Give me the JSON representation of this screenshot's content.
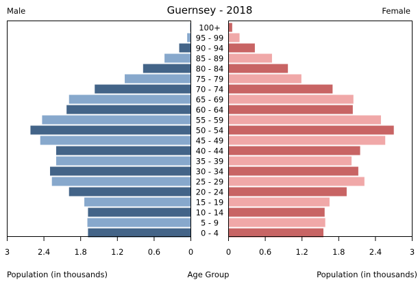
{
  "chart_data": {
    "type": "bar",
    "title": "Guernsey - 2018",
    "left_label": "Male",
    "right_label": "Female",
    "xlabel_left": "Population (in thousands)",
    "xlabel_center": "Age Group",
    "xlabel_right": "Population (in thousands)",
    "xlim": [
      0,
      3
    ],
    "ticks": [
      "0",
      "0.6",
      "1.2",
      "1.8",
      "2.4",
      "3"
    ],
    "tick_values": [
      0,
      0.6,
      1.2,
      1.8,
      2.4,
      3
    ],
    "categories": [
      "0 - 4",
      "5 - 9",
      "10 - 14",
      "15 - 19",
      "20 - 24",
      "25 - 29",
      "30 - 34",
      "35 - 39",
      "40 - 44",
      "45 - 49",
      "50 - 54",
      "55 - 59",
      "60 - 64",
      "65 - 69",
      "70 - 74",
      "75 - 79",
      "80 - 84",
      "85 - 89",
      "90 - 94",
      "95 - 99",
      "100+"
    ],
    "series": [
      {
        "name": "Male",
        "values": [
          1.68,
          1.69,
          1.68,
          1.74,
          1.99,
          2.27,
          2.3,
          2.2,
          2.2,
          2.46,
          2.62,
          2.43,
          2.03,
          1.99,
          1.57,
          1.08,
          0.78,
          0.43,
          0.19,
          0.06,
          0.01
        ]
      },
      {
        "name": "Female",
        "values": [
          1.55,
          1.58,
          1.57,
          1.65,
          1.93,
          2.22,
          2.12,
          2.01,
          2.15,
          2.56,
          2.7,
          2.49,
          2.03,
          2.04,
          1.7,
          1.19,
          0.97,
          0.71,
          0.43,
          0.18,
          0.06
        ]
      }
    ],
    "colors": {
      "male_dark": "#436488",
      "male_light": "#87a8cc",
      "female_dark": "#c86464",
      "female_light": "#f0a8a8"
    }
  }
}
